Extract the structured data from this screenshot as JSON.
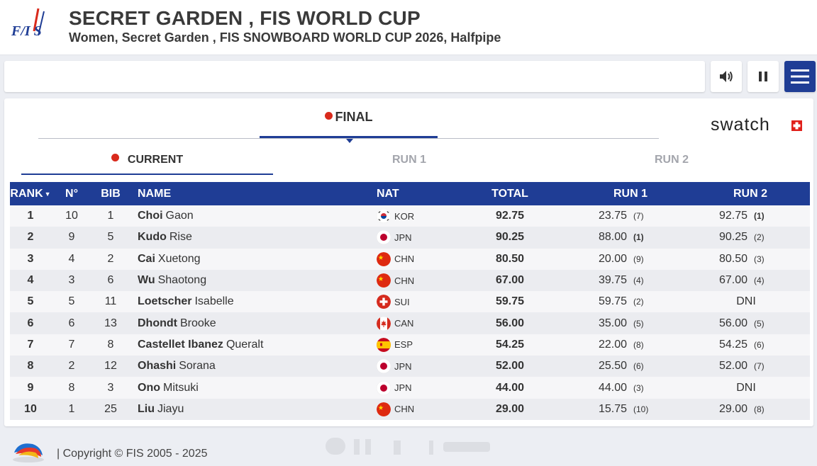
{
  "header": {
    "title": "SECRET GARDEN , FIS WORLD CUP",
    "subtitle": "Women, Secret Garden , FIS SNOWBOARD WORLD CUP 2026, Halfpipe",
    "logo_text": "FIS"
  },
  "controls": {
    "sound_icon": "speaker-icon",
    "pause_icon": "pause-icon",
    "menu_icon": "hamburger-menu-icon"
  },
  "tabs": {
    "final_label": "FINAL",
    "current_label": "CURRENT",
    "run1_label": "RUN 1",
    "run2_label": "RUN 2"
  },
  "sponsor": {
    "name": "swatch"
  },
  "table": {
    "headers": {
      "rank": "RANK",
      "no": "N°",
      "bib": "BIB",
      "name": "NAME",
      "nat": "NAT",
      "total": "TOTAL",
      "run1": "RUN 1",
      "run2": "RUN 2"
    },
    "rows": [
      {
        "rank": "1",
        "no": "10",
        "bib": "1",
        "last": "Choi",
        "first": "Gaon",
        "nat": "KOR",
        "total": "92.75",
        "run1": "23.75",
        "run1_pos": "(7)",
        "run2": "92.75",
        "run2_pos": "(1)"
      },
      {
        "rank": "2",
        "no": "9",
        "bib": "5",
        "last": "Kudo",
        "first": "Rise",
        "nat": "JPN",
        "total": "90.25",
        "run1": "88.00",
        "run1_pos": "(1)",
        "run2": "90.25",
        "run2_pos": "(2)"
      },
      {
        "rank": "3",
        "no": "4",
        "bib": "2",
        "last": "Cai",
        "first": "Xuetong",
        "nat": "CHN",
        "total": "80.50",
        "run1": "20.00",
        "run1_pos": "(9)",
        "run2": "80.50",
        "run2_pos": "(3)"
      },
      {
        "rank": "4",
        "no": "3",
        "bib": "6",
        "last": "Wu",
        "first": "Shaotong",
        "nat": "CHN",
        "total": "67.00",
        "run1": "39.75",
        "run1_pos": "(4)",
        "run2": "67.00",
        "run2_pos": "(4)"
      },
      {
        "rank": "5",
        "no": "5",
        "bib": "11",
        "last": "Loetscher",
        "first": "Isabelle",
        "nat": "SUI",
        "total": "59.75",
        "run1": "59.75",
        "run1_pos": "(2)",
        "run2": "DNI",
        "run2_pos": ""
      },
      {
        "rank": "6",
        "no": "6",
        "bib": "13",
        "last": "Dhondt",
        "first": "Brooke",
        "nat": "CAN",
        "total": "56.00",
        "run1": "35.00",
        "run1_pos": "(5)",
        "run2": "56.00",
        "run2_pos": "(5)"
      },
      {
        "rank": "7",
        "no": "7",
        "bib": "8",
        "last": "Castellet Ibanez",
        "first": "Queralt",
        "nat": "ESP",
        "total": "54.25",
        "run1": "22.00",
        "run1_pos": "(8)",
        "run2": "54.25",
        "run2_pos": "(6)"
      },
      {
        "rank": "8",
        "no": "2",
        "bib": "12",
        "last": "Ohashi",
        "first": "Sorana",
        "nat": "JPN",
        "total": "52.00",
        "run1": "25.50",
        "run1_pos": "(6)",
        "run2": "52.00",
        "run2_pos": "(7)"
      },
      {
        "rank": "9",
        "no": "8",
        "bib": "3",
        "last": "Ono",
        "first": "Mitsuki",
        "nat": "JPN",
        "total": "44.00",
        "run1": "44.00",
        "run1_pos": "(3)",
        "run2": "DNI",
        "run2_pos": ""
      },
      {
        "rank": "10",
        "no": "1",
        "bib": "25",
        "last": "Liu",
        "first": "Jiayu",
        "nat": "CHN",
        "total": "29.00",
        "run1": "15.75",
        "run1_pos": "(10)",
        "run2": "29.00",
        "run2_pos": "(8)"
      }
    ]
  },
  "footer": {
    "copyright": "| Copyright © FIS 2005 - 2025"
  },
  "colors": {
    "accent": "#1f3d95",
    "live_dot": "#d92a1c"
  }
}
